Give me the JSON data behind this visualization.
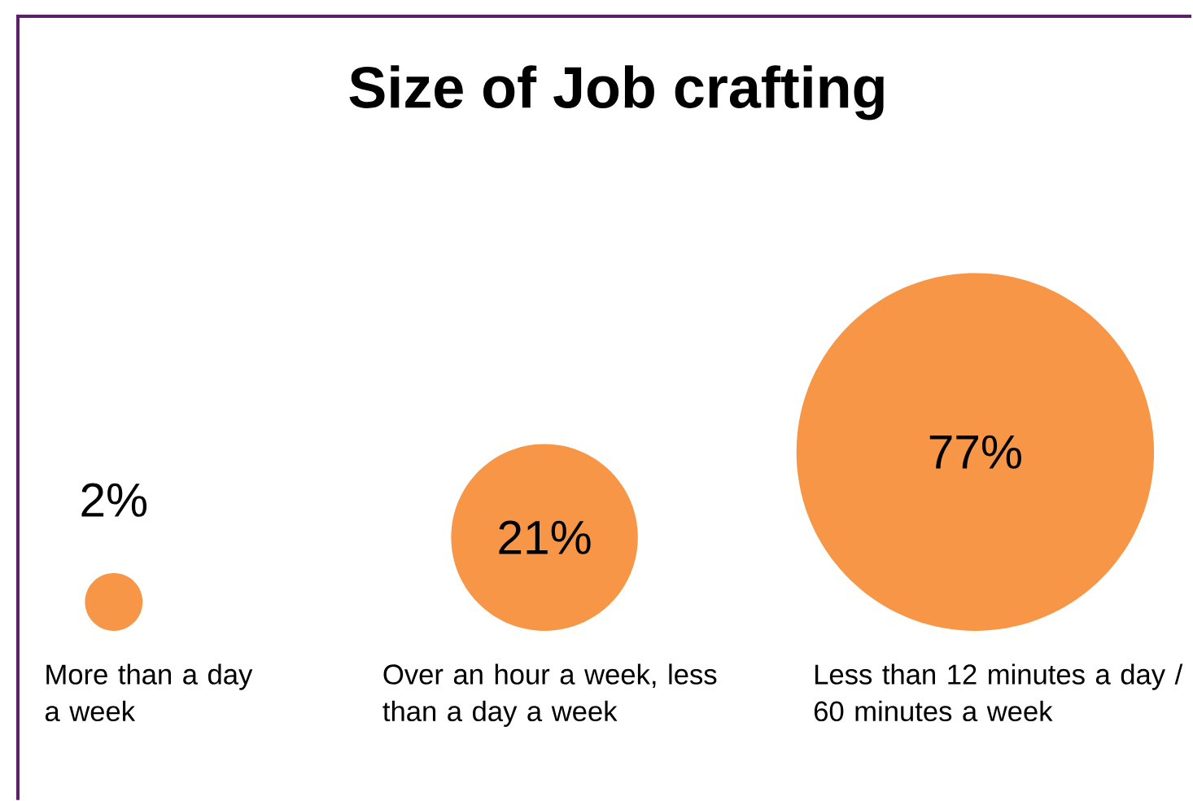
{
  "chart_data": {
    "type": "other",
    "title": "Size of Job crafting",
    "categories": [
      "More than a day a week",
      "Over an hour a week, less than a day a week",
      "Less than 12 minutes a day / 60 minutes a week"
    ],
    "values": [
      2,
      21,
      77
    ],
    "value_labels": [
      "2%",
      "21%",
      "77%"
    ],
    "color": "#f79646"
  }
}
